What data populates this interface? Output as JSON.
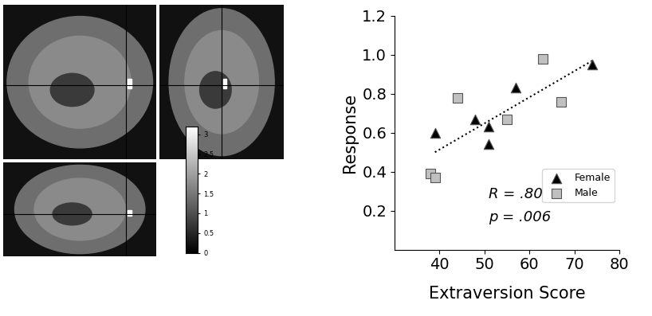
{
  "chart_data": {
    "type": "scatter",
    "x_label": "Extraversion Score",
    "y_label": "Response",
    "xlim": [
      30,
      80
    ],
    "xticks": [
      40,
      50,
      60,
      70,
      80
    ],
    "ylim": [
      0,
      1.2
    ],
    "yticks": [
      0.2,
      0.4,
      0.6,
      0.8,
      1.0,
      1.2
    ],
    "legend": "lower right",
    "annotations": [
      "R = .80",
      "p = .006"
    ],
    "series": [
      {
        "name": "Female",
        "color": "#000000",
        "marker": "triangle",
        "x": [
          39,
          48,
          51,
          51,
          57,
          74
        ],
        "values": [
          0.6,
          0.67,
          0.63,
          0.54,
          0.83,
          0.95
        ]
      },
      {
        "name": "Male",
        "color": "#c0c0c0",
        "marker": "square",
        "x": [
          38,
          39,
          44,
          55,
          63,
          67
        ],
        "values": [
          0.39,
          0.37,
          0.78,
          0.67,
          0.98,
          0.76
        ]
      },
      {
        "type": "line",
        "line_style": "dotted",
        "color": "#000000",
        "x": [
          39,
          74
        ],
        "values": [
          0.5,
          0.97
        ]
      }
    ]
  },
  "brain_images": {
    "colorbar_range": [
      0,
      3.2
    ],
    "colorbar_ticks": [
      0,
      0.5,
      1,
      1.5,
      2,
      2.5,
      3
    ]
  }
}
